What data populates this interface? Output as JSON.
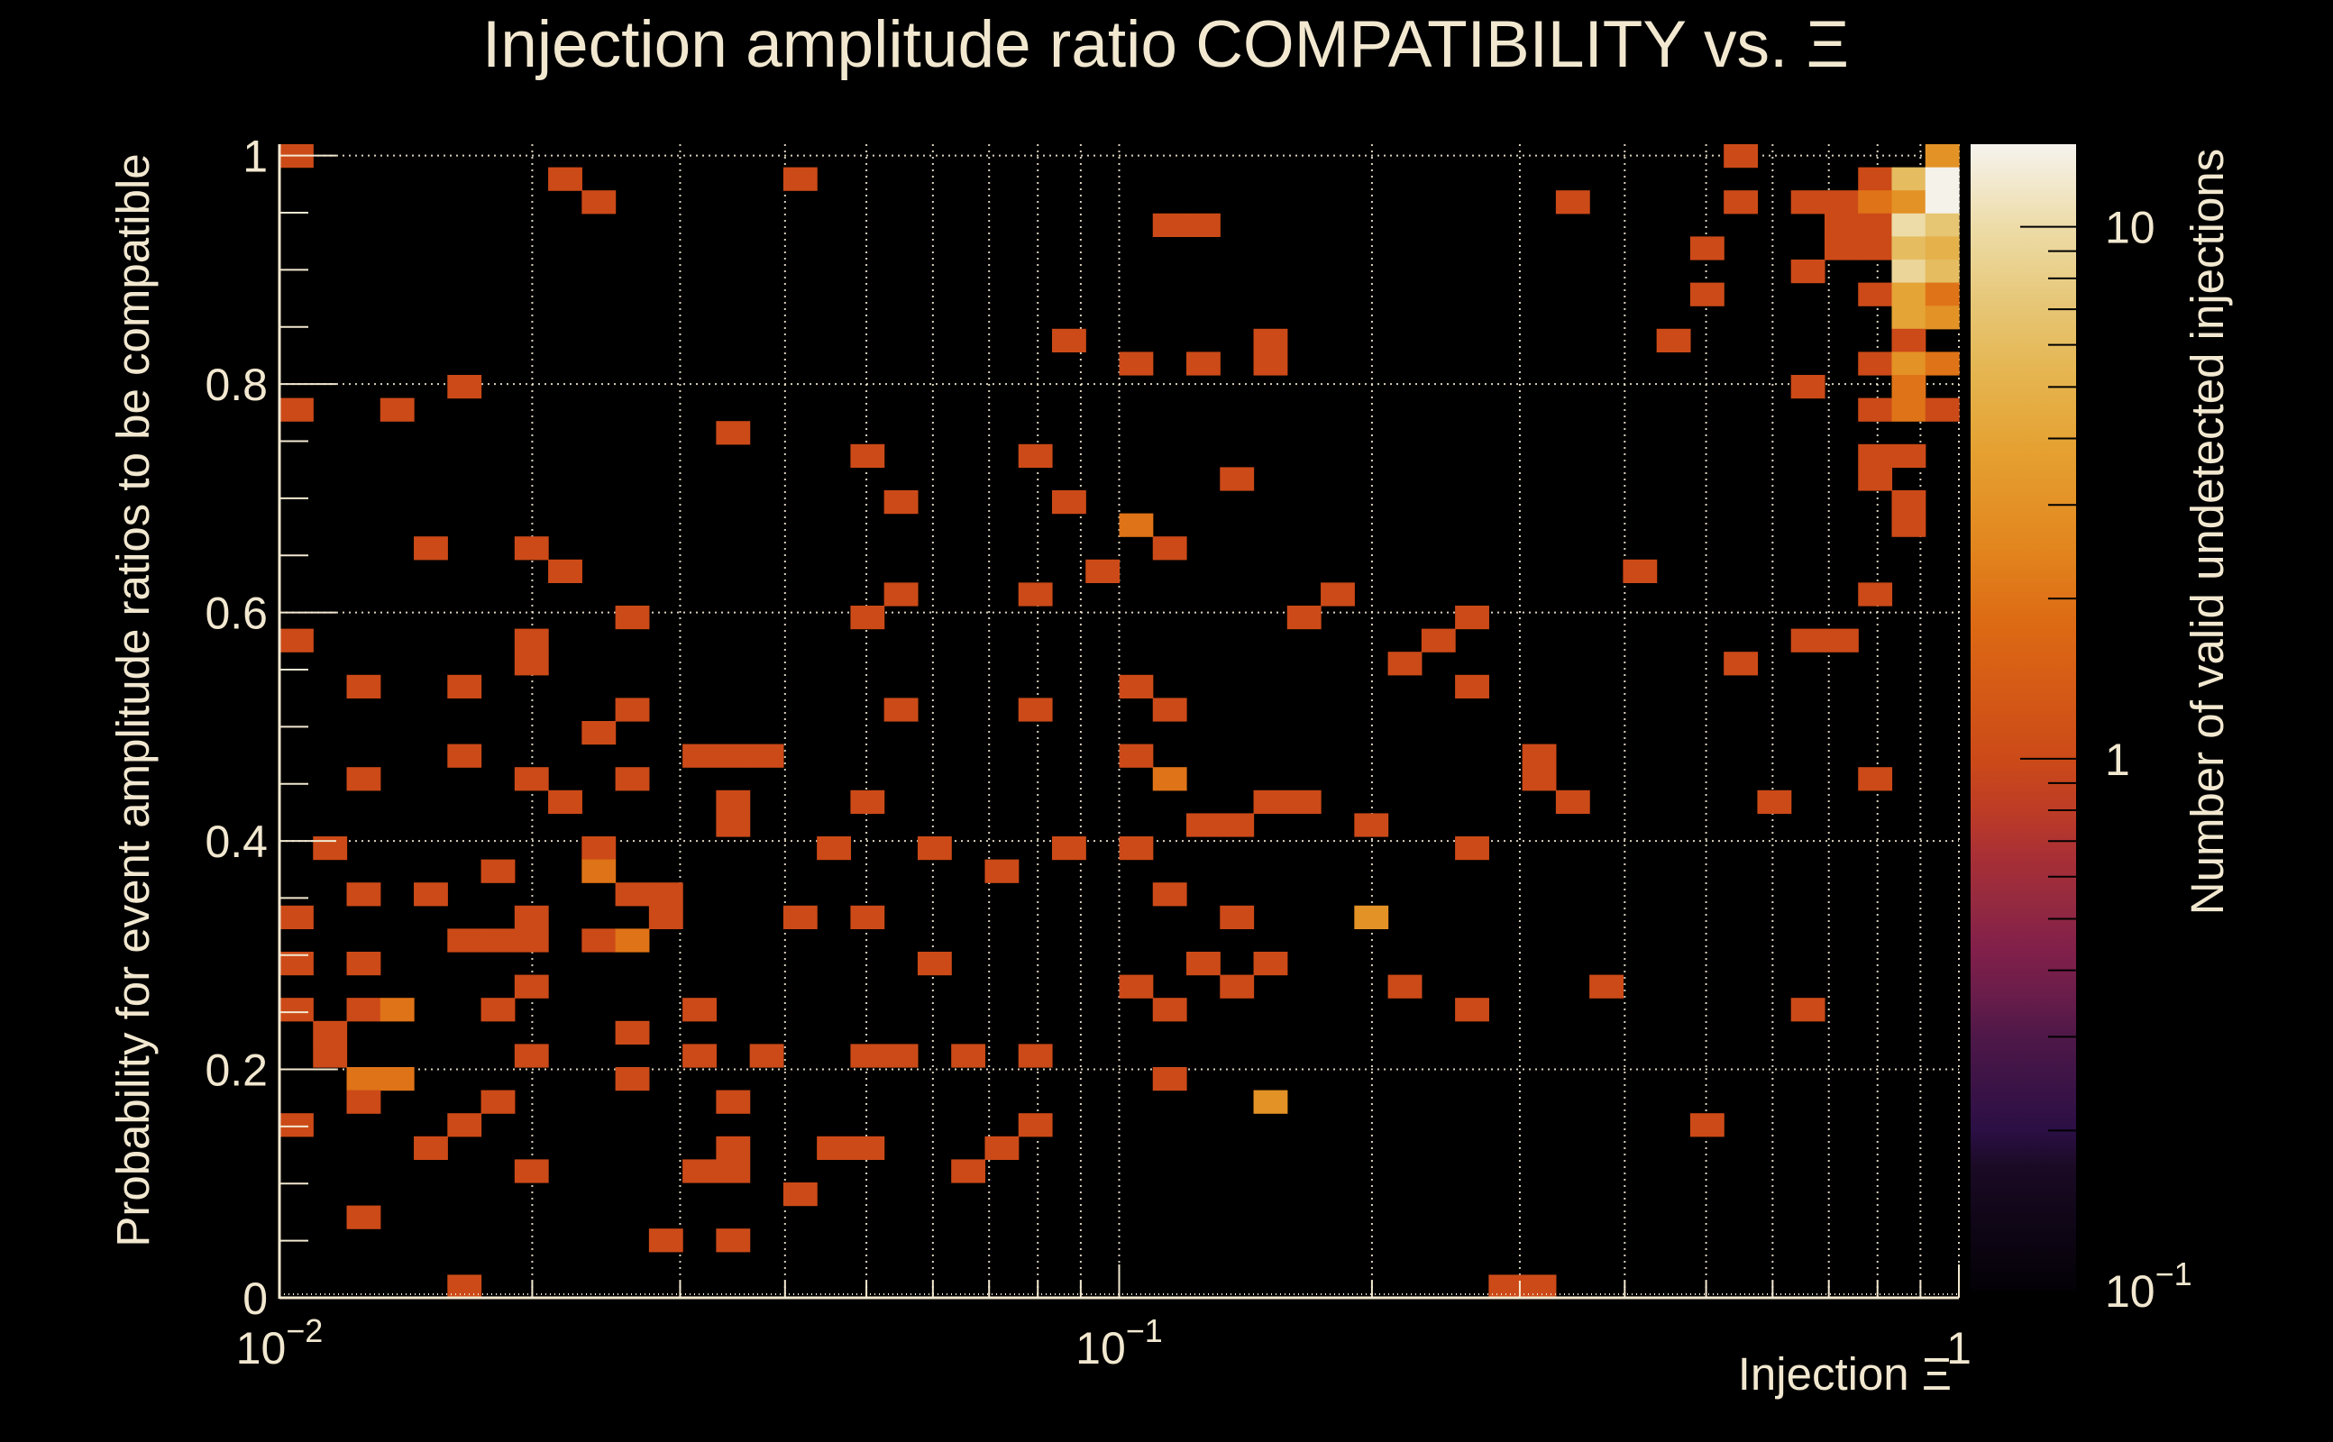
{
  "chart_data": {
    "type": "heatmap",
    "title": "Injection amplitude ratio COMPATIBILITY vs.  Ξ",
    "xlabel": "Injection Ξ",
    "ylabel": "Probability for event amplitude ratios to be compatible",
    "zlabel": "Number of valid undetected injections",
    "x_scale": "log",
    "y_scale": "linear",
    "z_scale": "log",
    "x_range": [
      0.01,
      1
    ],
    "y_range": [
      0,
      1.01
    ],
    "z_range": [
      0.1,
      14.3
    ],
    "x_bins": 50,
    "y_bins": 50,
    "grid": true,
    "colorbar": "right",
    "x_ticks": [
      {
        "value": 0.01,
        "base": "10",
        "exp": "−2"
      },
      {
        "value": 0.1,
        "base": "10",
        "exp": "−1"
      },
      {
        "value": 1,
        "base": "1",
        "exp": ""
      }
    ],
    "x_minor_ticks": [
      0.02,
      0.03,
      0.04,
      0.05,
      0.06,
      0.07,
      0.08,
      0.09,
      0.2,
      0.3,
      0.4,
      0.5,
      0.6,
      0.7,
      0.8,
      0.9
    ],
    "y_ticks": [
      {
        "value": 0,
        "label": "0"
      },
      {
        "value": 0.2,
        "label": "0.2"
      },
      {
        "value": 0.4,
        "label": "0.4"
      },
      {
        "value": 0.6,
        "label": "0.6"
      },
      {
        "value": 0.8,
        "label": "0.8"
      },
      {
        "value": 1,
        "label": "1"
      }
    ],
    "z_ticks": [
      {
        "value": 0.1,
        "base": "10",
        "exp": "−1"
      },
      {
        "value": 1,
        "base": "1",
        "exp": ""
      },
      {
        "value": 10,
        "base": "10",
        "exp": ""
      }
    ],
    "z_minor_ticks": [
      0.2,
      0.3,
      0.4,
      0.5,
      0.6,
      0.7,
      0.8,
      0.9,
      2,
      3,
      4,
      5,
      6,
      7,
      8,
      9
    ],
    "colormap": [
      [
        0.1,
        "#030106"
      ],
      [
        0.17,
        "#1A0A24"
      ],
      [
        0.2,
        "#2B0F45"
      ],
      [
        0.3,
        "#4E1848"
      ],
      [
        0.36,
        "#6A1D4A"
      ],
      [
        0.44,
        "#82204A"
      ],
      [
        0.54,
        "#952A40"
      ],
      [
        0.66,
        "#A93035"
      ],
      [
        0.8,
        "#BE3C26"
      ],
      [
        1,
        "#CC4A18"
      ],
      [
        1.8,
        "#DD6A14"
      ],
      [
        2.5,
        "#E2861E"
      ],
      [
        3.75,
        "#E5A030"
      ],
      [
        5.3,
        "#E5B550"
      ],
      [
        7.1,
        "#E6C675"
      ],
      [
        10,
        "#EDDCA8"
      ],
      [
        14.3,
        "#F6F3EE"
      ]
    ],
    "cells_format": [
      "x_bin_index",
      "y_bin_index",
      "count"
    ],
    "cells": [
      [
        0,
        49,
        1
      ],
      [
        43,
        49,
        1
      ],
      [
        49,
        49,
        3
      ],
      [
        8,
        48,
        1
      ],
      [
        15,
        48,
        1
      ],
      [
        47,
        48,
        1
      ],
      [
        48,
        48,
        6
      ],
      [
        49,
        48,
        14
      ],
      [
        9,
        47,
        1
      ],
      [
        38,
        47,
        1
      ],
      [
        43,
        47,
        1
      ],
      [
        45,
        47,
        1
      ],
      [
        46,
        47,
        1
      ],
      [
        47,
        47,
        2
      ],
      [
        48,
        47,
        3
      ],
      [
        49,
        47,
        14
      ],
      [
        26,
        46,
        1
      ],
      [
        27,
        46,
        1
      ],
      [
        46,
        46,
        1
      ],
      [
        47,
        46,
        1
      ],
      [
        48,
        46,
        10
      ],
      [
        49,
        46,
        7
      ],
      [
        42,
        45,
        1
      ],
      [
        46,
        45,
        1
      ],
      [
        47,
        45,
        1
      ],
      [
        48,
        45,
        6
      ],
      [
        49,
        45,
        5
      ],
      [
        45,
        44,
        1
      ],
      [
        48,
        44,
        9
      ],
      [
        49,
        44,
        6
      ],
      [
        42,
        43,
        1
      ],
      [
        47,
        43,
        1
      ],
      [
        48,
        43,
        4
      ],
      [
        49,
        43,
        2
      ],
      [
        48,
        42,
        4
      ],
      [
        49,
        42,
        3
      ],
      [
        23,
        41,
        1
      ],
      [
        29,
        41,
        1
      ],
      [
        41,
        41,
        1
      ],
      [
        48,
        41,
        1
      ],
      [
        25,
        40,
        1
      ],
      [
        27,
        40,
        1
      ],
      [
        29,
        40,
        1
      ],
      [
        47,
        40,
        1
      ],
      [
        48,
        40,
        3
      ],
      [
        49,
        40,
        2
      ],
      [
        5,
        39,
        1
      ],
      [
        45,
        39,
        1
      ],
      [
        48,
        39,
        2
      ],
      [
        0,
        38,
        1
      ],
      [
        3,
        38,
        1
      ],
      [
        47,
        38,
        1
      ],
      [
        48,
        38,
        2
      ],
      [
        49,
        38,
        1
      ],
      [
        13,
        37,
        1
      ],
      [
        17,
        36,
        1
      ],
      [
        22,
        36,
        1
      ],
      [
        47,
        36,
        1
      ],
      [
        48,
        36,
        1
      ],
      [
        28,
        35,
        1
      ],
      [
        47,
        35,
        1
      ],
      [
        18,
        34,
        1
      ],
      [
        23,
        34,
        1
      ],
      [
        48,
        34,
        1
      ],
      [
        25,
        33,
        2
      ],
      [
        48,
        33,
        1
      ],
      [
        4,
        32,
        1
      ],
      [
        7,
        32,
        1
      ],
      [
        26,
        32,
        1
      ],
      [
        8,
        31,
        1
      ],
      [
        24,
        31,
        1
      ],
      [
        40,
        31,
        1
      ],
      [
        18,
        30,
        1
      ],
      [
        22,
        30,
        1
      ],
      [
        31,
        30,
        1
      ],
      [
        47,
        30,
        1
      ],
      [
        10,
        29,
        1
      ],
      [
        17,
        29,
        1
      ],
      [
        30,
        29,
        1
      ],
      [
        35,
        29,
        1
      ],
      [
        0,
        28,
        1
      ],
      [
        7,
        28,
        1
      ],
      [
        34,
        28,
        1
      ],
      [
        45,
        28,
        1
      ],
      [
        46,
        28,
        1
      ],
      [
        7,
        27,
        1
      ],
      [
        33,
        27,
        1
      ],
      [
        43,
        27,
        1
      ],
      [
        2,
        26,
        1
      ],
      [
        5,
        26,
        1
      ],
      [
        25,
        26,
        1
      ],
      [
        35,
        26,
        1
      ],
      [
        10,
        25,
        1
      ],
      [
        18,
        25,
        1
      ],
      [
        22,
        25,
        1
      ],
      [
        26,
        25,
        1
      ],
      [
        9,
        24,
        1
      ],
      [
        5,
        23,
        1
      ],
      [
        12,
        23,
        1
      ],
      [
        13,
        23,
        1
      ],
      [
        14,
        23,
        1
      ],
      [
        25,
        23,
        1
      ],
      [
        37,
        23,
        1
      ],
      [
        2,
        22,
        1
      ],
      [
        7,
        22,
        1
      ],
      [
        10,
        22,
        1
      ],
      [
        26,
        22,
        2
      ],
      [
        37,
        22,
        1
      ],
      [
        47,
        22,
        1
      ],
      [
        8,
        21,
        1
      ],
      [
        13,
        21,
        1
      ],
      [
        17,
        21,
        1
      ],
      [
        29,
        21,
        1
      ],
      [
        30,
        21,
        1
      ],
      [
        38,
        21,
        1
      ],
      [
        44,
        21,
        1
      ],
      [
        13,
        20,
        1
      ],
      [
        27,
        20,
        1
      ],
      [
        28,
        20,
        1
      ],
      [
        32,
        20,
        1
      ],
      [
        1,
        19,
        1
      ],
      [
        9,
        19,
        1
      ],
      [
        16,
        19,
        1
      ],
      [
        19,
        19,
        1
      ],
      [
        23,
        19,
        1
      ],
      [
        25,
        19,
        1
      ],
      [
        35,
        19,
        1
      ],
      [
        6,
        18,
        1
      ],
      [
        9,
        18,
        2
      ],
      [
        21,
        18,
        1
      ],
      [
        2,
        17,
        1
      ],
      [
        4,
        17,
        1
      ],
      [
        10,
        17,
        1
      ],
      [
        11,
        17,
        1
      ],
      [
        26,
        17,
        1
      ],
      [
        0,
        16,
        1
      ],
      [
        7,
        16,
        1
      ],
      [
        11,
        16,
        1
      ],
      [
        15,
        16,
        1
      ],
      [
        17,
        16,
        1
      ],
      [
        28,
        16,
        1
      ],
      [
        32,
        16,
        3
      ],
      [
        5,
        15,
        1
      ],
      [
        6,
        15,
        1
      ],
      [
        7,
        15,
        1
      ],
      [
        9,
        15,
        1
      ],
      [
        10,
        15,
        2
      ],
      [
        0,
        14,
        1
      ],
      [
        2,
        14,
        1
      ],
      [
        19,
        14,
        1
      ],
      [
        27,
        14,
        1
      ],
      [
        29,
        14,
        1
      ],
      [
        7,
        13,
        1
      ],
      [
        25,
        13,
        1
      ],
      [
        28,
        13,
        1
      ],
      [
        33,
        13,
        1
      ],
      [
        39,
        13,
        1
      ],
      [
        0,
        12,
        1
      ],
      [
        2,
        12,
        1
      ],
      [
        3,
        12,
        2
      ],
      [
        6,
        12,
        1
      ],
      [
        12,
        12,
        1
      ],
      [
        26,
        12,
        1
      ],
      [
        35,
        12,
        1
      ],
      [
        45,
        12,
        1
      ],
      [
        1,
        11,
        1
      ],
      [
        10,
        11,
        1
      ],
      [
        1,
        10,
        1
      ],
      [
        7,
        10,
        1
      ],
      [
        12,
        10,
        1
      ],
      [
        14,
        10,
        1
      ],
      [
        17,
        10,
        1
      ],
      [
        18,
        10,
        1
      ],
      [
        20,
        10,
        1
      ],
      [
        22,
        10,
        1
      ],
      [
        2,
        9,
        2
      ],
      [
        3,
        9,
        2
      ],
      [
        10,
        9,
        1
      ],
      [
        26,
        9,
        1
      ],
      [
        2,
        8,
        1
      ],
      [
        6,
        8,
        1
      ],
      [
        13,
        8,
        1
      ],
      [
        29,
        8,
        3
      ],
      [
        0,
        7,
        1
      ],
      [
        5,
        7,
        1
      ],
      [
        22,
        7,
        1
      ],
      [
        42,
        7,
        1
      ],
      [
        4,
        6,
        1
      ],
      [
        13,
        6,
        1
      ],
      [
        16,
        6,
        1
      ],
      [
        17,
        6,
        1
      ],
      [
        21,
        6,
        1
      ],
      [
        7,
        5,
        1
      ],
      [
        12,
        5,
        1
      ],
      [
        13,
        5,
        1
      ],
      [
        20,
        5,
        1
      ],
      [
        15,
        4,
        1
      ],
      [
        2,
        3,
        1
      ],
      [
        11,
        2,
        1
      ],
      [
        13,
        2,
        1
      ],
      [
        5,
        0,
        1
      ],
      [
        36,
        0,
        1
      ],
      [
        37,
        0,
        1
      ]
    ]
  },
  "colors": {
    "background": "#000000",
    "text": "#F2E8D0",
    "grid": "#F2E8D0",
    "tick_on_colorbar": "#000000"
  }
}
